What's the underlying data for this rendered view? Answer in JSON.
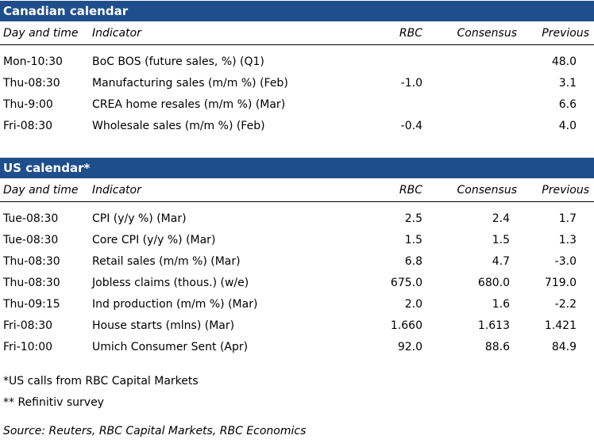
{
  "columns": {
    "day": "Day and time",
    "indicator": "Indicator",
    "rbc": "RBC",
    "consensus": "Consensus",
    "previous": "Previous"
  },
  "canadian": {
    "title": "Canadian calendar",
    "rows": [
      {
        "day": "Mon-10:30",
        "indicator": "BoC BOS (future sales, %) (Q1)",
        "rbc": "",
        "consensus": "",
        "previous": "48.0"
      },
      {
        "day": "Thu-08:30",
        "indicator": "Manufacturing sales (m/m %) (Feb)",
        "rbc": "-1.0",
        "consensus": "",
        "previous": "3.1"
      },
      {
        "day": "Thu-9:00",
        "indicator": "CREA home resales (m/m %) (Mar)",
        "rbc": "",
        "consensus": "",
        "previous": "6.6"
      },
      {
        "day": "Fri-08:30",
        "indicator": "Wholesale sales (m/m %) (Feb)",
        "rbc": "-0.4",
        "consensus": "",
        "previous": "4.0"
      }
    ]
  },
  "us": {
    "title": "US calendar*",
    "rows": [
      {
        "day": "Tue-08:30",
        "indicator": "CPI (y/y %) (Mar)",
        "rbc": "2.5",
        "consensus": "2.4",
        "previous": "1.7"
      },
      {
        "day": "Tue-08:30",
        "indicator": "Core CPI (y/y %) (Mar)",
        "rbc": "1.5",
        "consensus": "1.5",
        "previous": "1.3"
      },
      {
        "day": "Thu-08:30",
        "indicator": "Retail sales (m/m %) (Mar)",
        "rbc": "6.8",
        "consensus": "4.7",
        "previous": "-3.0"
      },
      {
        "day": "Thu-08:30",
        "indicator": "Jobless claims (thous.) (w/e)",
        "rbc": "675.0",
        "consensus": "680.0",
        "previous": "719.0"
      },
      {
        "day": "Thu-09:15",
        "indicator": "Ind production (m/m %) (Mar)",
        "rbc": "2.0",
        "consensus": "1.6",
        "previous": "-2.2"
      },
      {
        "day": "Fri-08:30",
        "indicator": "House starts (mlns) (Mar)",
        "rbc": "1.660",
        "consensus": "1.613",
        "previous": "1.421"
      },
      {
        "day": "Fri-10:00",
        "indicator": "Umich Consumer Sent (Apr)",
        "rbc": "92.0",
        "consensus": "88.6",
        "previous": "84.9"
      }
    ]
  },
  "notes": {
    "us_calls": "*US calls from RBC Capital Markets",
    "refinitiv": "** Refinitiv survey",
    "source": "Source: Reuters, RBC Capital Markets, RBC Economics"
  },
  "colors": {
    "header_bar": "#1f4e8c"
  }
}
